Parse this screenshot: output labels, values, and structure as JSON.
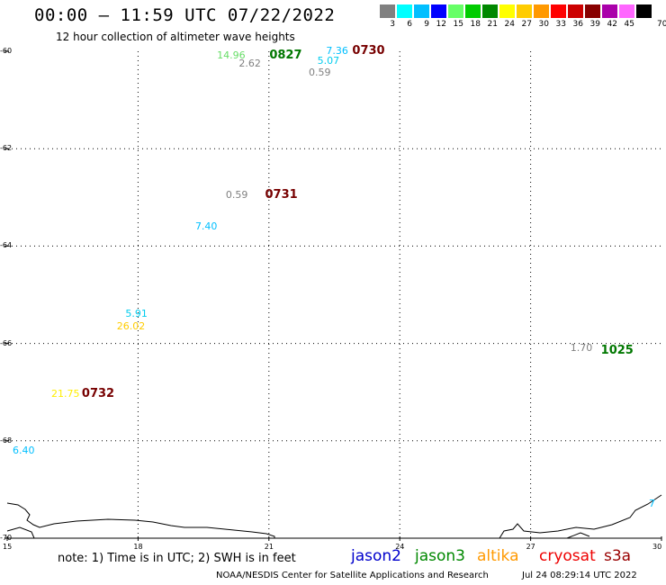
{
  "header": {
    "title": "00:00 – 11:59 UTC 07/22/2022",
    "subtitle": "12 hour collection of altimeter wave heights"
  },
  "legend": {
    "unit": "70 (ft)",
    "bins": [
      {
        "label": "3",
        "color": "#808080"
      },
      {
        "label": "6",
        "color": "#00ffff"
      },
      {
        "label": "9",
        "color": "#00bfff"
      },
      {
        "label": "12",
        "color": "#0000ff"
      },
      {
        "label": "15",
        "color": "#66ff66"
      },
      {
        "label": "18",
        "color": "#00cc00"
      },
      {
        "label": "21",
        "color": "#008800"
      },
      {
        "label": "24",
        "color": "#ffff00"
      },
      {
        "label": "27",
        "color": "#ffcc00"
      },
      {
        "label": "30",
        "color": "#ff9900"
      },
      {
        "label": "33",
        "color": "#ff0000"
      },
      {
        "label": "36",
        "color": "#cc0000"
      },
      {
        "label": "39",
        "color": "#880000"
      },
      {
        "label": "42",
        "color": "#aa00aa"
      },
      {
        "label": "45",
        "color": "#ff66ff"
      },
      {
        "label": "",
        "color": "#000000"
      }
    ]
  },
  "axes": {
    "lat_labels": [
      "-60",
      "-62",
      "-64",
      "-66",
      "-68",
      "-70"
    ],
    "lon_labels": [
      "15",
      "18",
      "21",
      "24",
      "27",
      "30"
    ]
  },
  "observations": [
    {
      "text": "14.96",
      "color": "#66dd66",
      "lat": -60.1,
      "lon": 20.1
    },
    {
      "text": "2.62",
      "color": "#808080",
      "lat": -60.25,
      "lon": 20.6
    },
    {
      "text": "7.36",
      "color": "#00bfff",
      "lat": -60.0,
      "lon": 22.6
    },
    {
      "text": "5.07",
      "color": "#00ccee",
      "lat": -60.2,
      "lon": 22.4
    },
    {
      "text": "0.59",
      "color": "#808080",
      "lat": -60.45,
      "lon": 22.2
    },
    {
      "text": "0.59",
      "color": "#808080",
      "lat": -62.95,
      "lon": 20.3
    },
    {
      "text": "7.40",
      "color": "#00bfff",
      "lat": -63.6,
      "lon": 19.6
    },
    {
      "text": "5.91",
      "color": "#00ccee",
      "lat": -65.4,
      "lon": 18.0
    },
    {
      "text": "26.02",
      "color": "#ffcc00",
      "lat": -65.65,
      "lon": 17.8
    },
    {
      "text": "1.70",
      "color": "#808080",
      "lat": -66.1,
      "lon": 28.2
    },
    {
      "text": "21.75",
      "color": "#ffee00",
      "lat": -67.05,
      "lon": 16.3
    },
    {
      "text": "6.40",
      "color": "#00bfff",
      "lat": -68.2,
      "lon": 15.2
    },
    {
      "text": "7",
      "color": "#00bfff",
      "lat": -69.3,
      "lon": 30.0
    }
  ],
  "time_tags": [
    {
      "text": "0827",
      "color": "#007700",
      "lat": -60.1,
      "lon": 21.3
    },
    {
      "text": "0730",
      "color": "#770000",
      "lat": -60.0,
      "lon": 23.2
    },
    {
      "text": "0731",
      "color": "#770000",
      "lat": -62.95,
      "lon": 21.2
    },
    {
      "text": "1025",
      "color": "#007700",
      "lat": -66.15,
      "lon": 28.9
    },
    {
      "text": "0732",
      "color": "#770000",
      "lat": -67.05,
      "lon": 17.0
    }
  ],
  "footer": {
    "note": "note: 1) Time is in UTC; 2) SWH is in feet",
    "missions": [
      {
        "name": "jason2",
        "color": "#0000cc"
      },
      {
        "name": "jason3",
        "color": "#008800"
      },
      {
        "name": "altika",
        "color": "#ff9900"
      },
      {
        "name": "cryosat",
        "color": "#ee0000"
      },
      {
        "name": "s3a",
        "color": "#990000"
      }
    ],
    "credit": "NOAA/NESDIS Center for Satellite Applications and Research",
    "timestamp": "Jul 24 08:29:14 UTC 2022"
  }
}
